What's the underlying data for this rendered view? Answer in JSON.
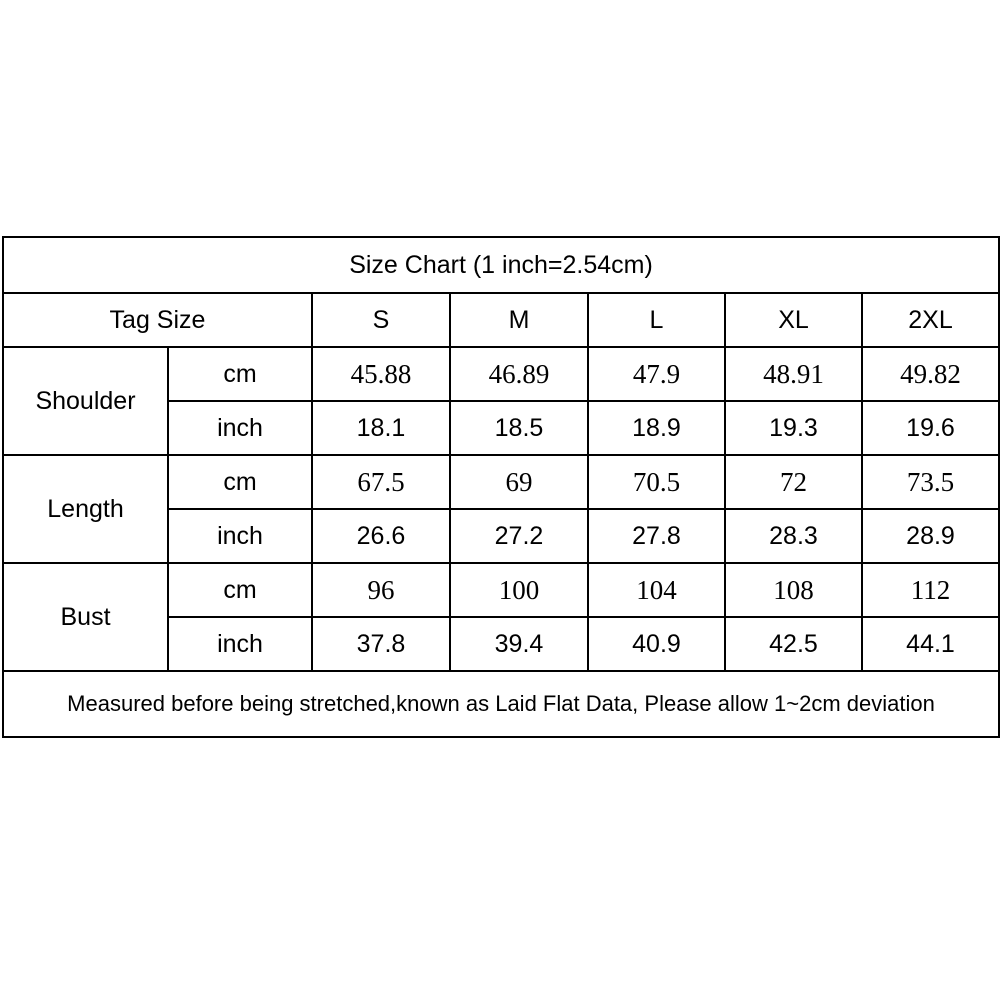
{
  "title": "Size Chart (1 inch=2.54cm)",
  "header": {
    "label": "Tag Size",
    "sizes": [
      "S",
      "M",
      "L",
      "XL",
      "2XL"
    ]
  },
  "rows": [
    {
      "name": "Shoulder",
      "cm": [
        "45.88",
        "46.89",
        "47.9",
        "48.91",
        "49.82"
      ],
      "inch": [
        "18.1",
        "18.5",
        "18.9",
        "19.3",
        "19.6"
      ]
    },
    {
      "name": "Length",
      "cm": [
        "67.5",
        "69",
        "70.5",
        "72",
        "73.5"
      ],
      "inch": [
        "26.6",
        "27.2",
        "27.8",
        "28.3",
        "28.9"
      ]
    },
    {
      "name": "Bust",
      "cm": [
        "96",
        "100",
        "104",
        "108",
        "112"
      ],
      "inch": [
        "37.8",
        "39.4",
        "40.9",
        "42.5",
        "44.1"
      ]
    }
  ],
  "units": {
    "cm": "cm",
    "inch": "inch"
  },
  "note": "Measured before being stretched,known as Laid Flat Data, Please allow 1~2cm deviation"
}
